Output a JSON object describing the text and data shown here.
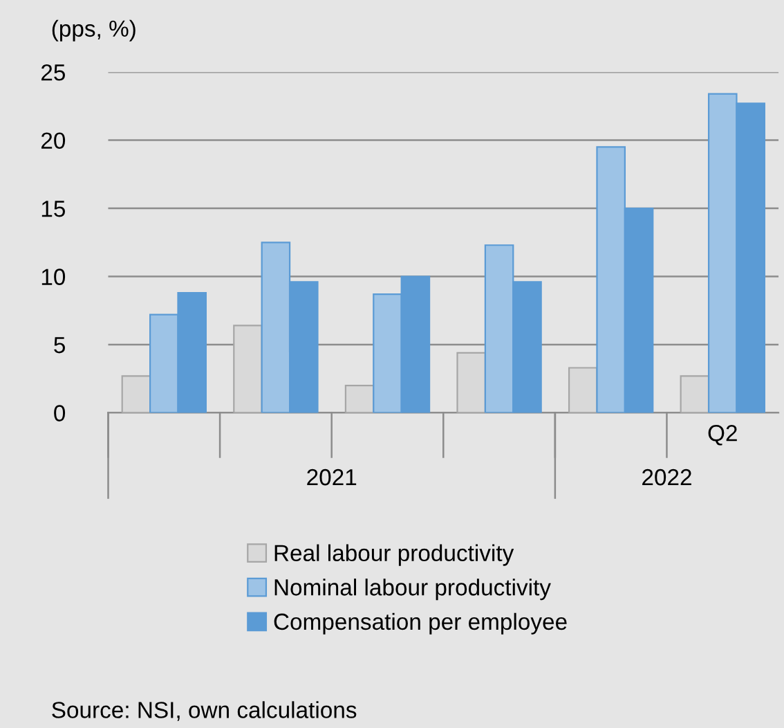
{
  "chart_data": {
    "type": "bar",
    "ylabel": "(pps, %)",
    "categories": [
      null,
      null,
      null,
      null,
      null,
      "Q2"
    ],
    "series": [
      {
        "name": "Real labour productivity",
        "color": "#d9d9d9",
        "values": [
          2.7,
          6.4,
          2.0,
          4.4,
          3.3,
          2.7
        ]
      },
      {
        "name": "Nominal labour productivity",
        "color": "#9dc3e6",
        "values": [
          7.2,
          12.5,
          8.7,
          12.3,
          19.5,
          23.4
        ]
      },
      {
        "name": "Compensation per employee",
        "color": "#5b9bd5",
        "values": [
          8.8,
          9.6,
          10.0,
          9.6,
          15.0,
          22.7
        ]
      }
    ],
    "ylim": [
      0,
      25
    ],
    "yticks": [
      0,
      5,
      10,
      15,
      20,
      25
    ],
    "grid": "y",
    "legend": "bottom",
    "annotations": [
      "2021",
      "2022",
      "Source: NSI, own calculations"
    ]
  }
}
